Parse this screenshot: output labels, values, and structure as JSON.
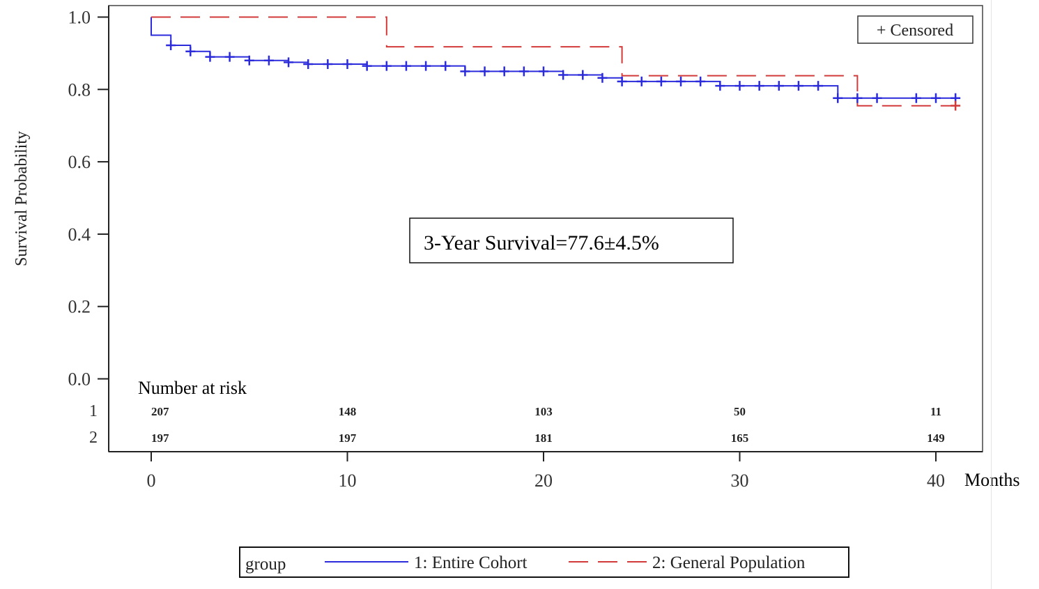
{
  "chart_data": {
    "type": "line",
    "subtype": "kaplan-meier",
    "title": "",
    "ylabel": "Survival Probability",
    "xlabel": "Months",
    "xlim": [
      -2.2,
      42.2
    ],
    "ylim": [
      0,
      1
    ],
    "xticks": [
      0,
      10,
      20,
      30,
      40
    ],
    "yticks": [
      0.0,
      0.2,
      0.4,
      0.6,
      0.8,
      1.0
    ],
    "grid": false,
    "annotation": "3-Year Survival=77.6±4.5%",
    "censored_legend": "+ Censored",
    "series": [
      {
        "id": "1",
        "name": "1: Entire Cohort",
        "color": "#2b2bdc",
        "dash": "solid",
        "steps": [
          [
            0,
            1.0
          ],
          [
            0,
            0.95
          ],
          [
            1,
            0.95
          ],
          [
            1,
            0.922
          ],
          [
            2,
            0.922
          ],
          [
            2,
            0.905
          ],
          [
            3,
            0.905
          ],
          [
            3,
            0.89
          ],
          [
            5,
            0.89
          ],
          [
            5,
            0.88
          ],
          [
            7,
            0.88
          ],
          [
            7,
            0.875
          ],
          [
            8,
            0.875
          ],
          [
            8,
            0.87
          ],
          [
            11,
            0.87
          ],
          [
            11,
            0.865
          ],
          [
            16,
            0.865
          ],
          [
            16,
            0.85
          ],
          [
            21,
            0.85
          ],
          [
            21,
            0.84
          ],
          [
            23,
            0.84
          ],
          [
            23,
            0.832
          ],
          [
            24,
            0.832
          ],
          [
            24,
            0.822
          ],
          [
            29,
            0.822
          ],
          [
            29,
            0.81
          ],
          [
            35,
            0.81
          ],
          [
            35,
            0.776
          ],
          [
            41,
            0.776
          ]
        ],
        "censored": [
          [
            1,
            0.922
          ],
          [
            2,
            0.905
          ],
          [
            3,
            0.89
          ],
          [
            4,
            0.89
          ],
          [
            5,
            0.88
          ],
          [
            6,
            0.88
          ],
          [
            7,
            0.875
          ],
          [
            8,
            0.87
          ],
          [
            9,
            0.87
          ],
          [
            10,
            0.87
          ],
          [
            11,
            0.865
          ],
          [
            12,
            0.865
          ],
          [
            13,
            0.865
          ],
          [
            14,
            0.865
          ],
          [
            15,
            0.865
          ],
          [
            16,
            0.85
          ],
          [
            17,
            0.85
          ],
          [
            18,
            0.85
          ],
          [
            19,
            0.85
          ],
          [
            20,
            0.85
          ],
          [
            21,
            0.84
          ],
          [
            22,
            0.84
          ],
          [
            23,
            0.832
          ],
          [
            24,
            0.822
          ],
          [
            25,
            0.822
          ],
          [
            26,
            0.822
          ],
          [
            27,
            0.822
          ],
          [
            28,
            0.822
          ],
          [
            29,
            0.81
          ],
          [
            30,
            0.81
          ],
          [
            31,
            0.81
          ],
          [
            32,
            0.81
          ],
          [
            33,
            0.81
          ],
          [
            34,
            0.81
          ],
          [
            35,
            0.776
          ],
          [
            36,
            0.776
          ],
          [
            37,
            0.776
          ],
          [
            39,
            0.776
          ],
          [
            40,
            0.776
          ],
          [
            41,
            0.776
          ]
        ]
      },
      {
        "id": "2",
        "name": "2: General Population",
        "color": "#d23a3a",
        "dash": "dashed",
        "steps": [
          [
            0,
            1.0
          ],
          [
            12,
            1.0
          ],
          [
            12,
            0.918
          ],
          [
            24,
            0.918
          ],
          [
            24,
            0.838
          ],
          [
            36,
            0.838
          ],
          [
            36,
            0.755
          ],
          [
            41,
            0.755
          ]
        ],
        "censored": [
          [
            41,
            0.755
          ]
        ]
      }
    ],
    "risk_table": {
      "title": "Number at risk",
      "times": [
        0,
        10,
        20,
        30,
        40
      ],
      "rows": [
        {
          "label": "1",
          "values": [
            207,
            148,
            103,
            50,
            11
          ]
        },
        {
          "label": "2",
          "values": [
            197,
            197,
            181,
            165,
            149
          ]
        }
      ]
    },
    "legend": {
      "title": "group",
      "position": "bottom"
    }
  }
}
